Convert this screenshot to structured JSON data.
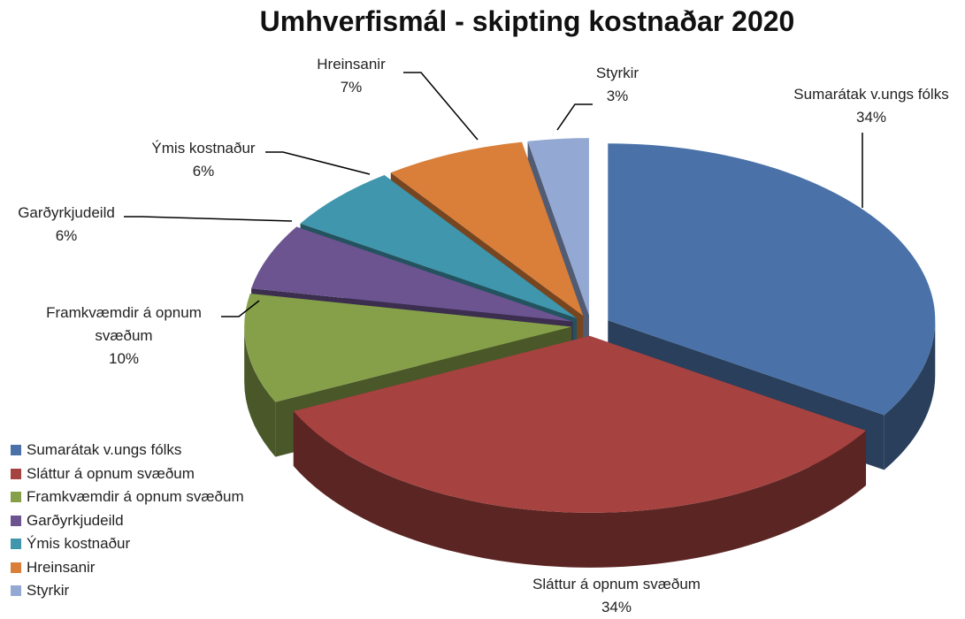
{
  "chart_data": {
    "type": "pie",
    "title": "Umhverfismál - skipting kostnaðar 2020",
    "categories": [
      "Sumarátak v.ungs fólks",
      "Sláttur á opnum svæðum",
      "Framkvæmdir á opnum svæðum",
      "Garðyrkjudeild",
      "Ýmis kostnaður",
      "Hreinsanir",
      "Styrkir"
    ],
    "values": [
      34,
      34,
      10,
      6,
      6,
      7,
      3
    ],
    "value_labels": [
      "34%",
      "34%",
      "10%",
      "6%",
      "6%",
      "7%",
      "3%"
    ],
    "colors": [
      "#4a72a8",
      "#a64340",
      "#86a04a",
      "#6c5490",
      "#3f96ad",
      "#d97f3a",
      "#93a8d2"
    ],
    "legend": "left"
  }
}
